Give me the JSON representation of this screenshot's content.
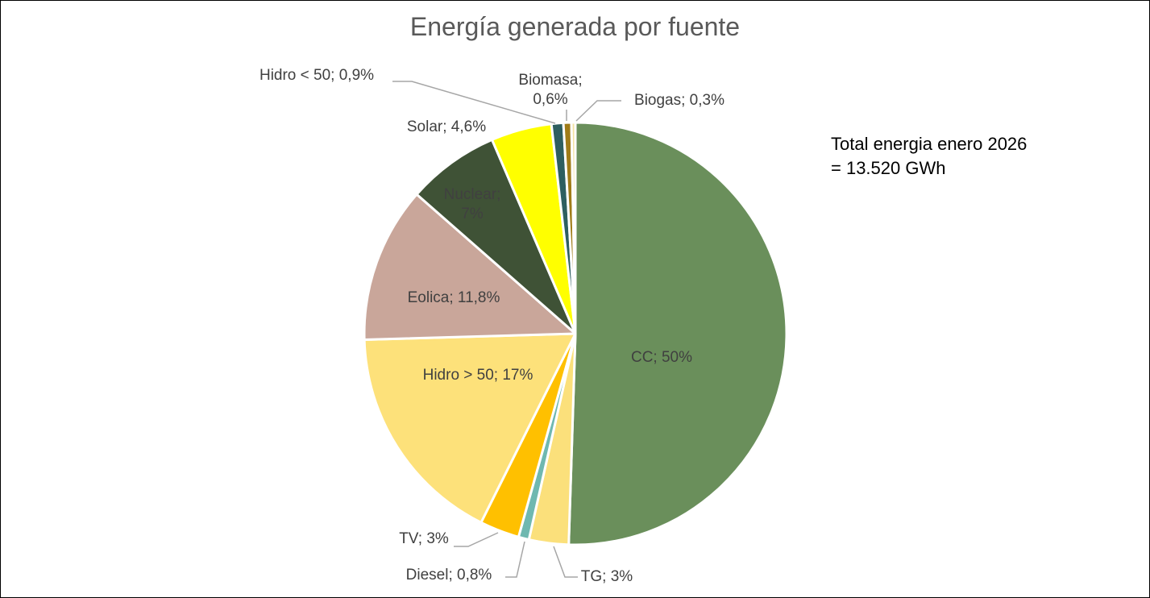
{
  "chart_data": {
    "type": "pie",
    "title": "Energía generada por fuente",
    "values": [
      50,
      3,
      0.8,
      3,
      17,
      11.8,
      7,
      4.6,
      0.9,
      0.6,
      0.3
    ],
    "value_labels": [
      "CC; 50%",
      "TG; 3%",
      "Diesel; 0,8%",
      "TV; 3%",
      "Hidro > 50; 17%",
      "Eolica; 11,8%",
      "Nuclear; 7%",
      "Solar; 4,6%",
      "Hidro < 50; 0,9%",
      "Biomasa; 0,6%",
      "Biogas; 0,3%"
    ],
    "colors": [
      "#6a8f5b",
      "#fbe07b",
      "#6fb8b0",
      "#ffc000",
      "#fde17a",
      "#c9a69a",
      "#3f5236",
      "#ffff00",
      "#2e5f60",
      "#a07c18",
      "#f3e2a2"
    ],
    "annotation": "Total energia enero 2026 = 13.520 GWh"
  }
}
